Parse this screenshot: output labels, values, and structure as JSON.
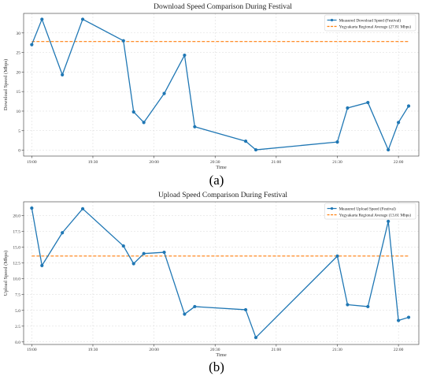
{
  "chart_data": [
    {
      "type": "line",
      "panel_label": "(a)",
      "title": "Download Speed Comparison During Festival",
      "xlabel": "Time",
      "ylabel": "Download Speed (Mbps)",
      "xlim": [
        "18:56",
        "22:10"
      ],
      "ylim": [
        -1.5,
        35.0
      ],
      "xticks": [
        "19:00",
        "19:30",
        "20:00",
        "20:30",
        "21:00",
        "21:30",
        "22:00"
      ],
      "yticks": [
        0,
        5,
        10,
        15,
        20,
        25,
        30
      ],
      "grid": true,
      "legend_position": "top-right",
      "colors": {
        "measured": "#1f77b4",
        "average": "#ff7f0e"
      },
      "series": [
        {
          "name": "Measured Download Speed (Festival)",
          "style": "line-markers",
          "x": [
            "19:00",
            "19:05",
            "19:15",
            "19:25",
            "19:45",
            "19:50",
            "19:55",
            "20:05",
            "20:15",
            "20:20",
            "20:45",
            "20:50",
            "21:30",
            "21:35",
            "21:45",
            "21:55",
            "22:00",
            "22:05"
          ],
          "y": [
            27.0,
            33.5,
            19.3,
            33.5,
            28.0,
            9.8,
            7.1,
            14.5,
            24.3,
            6.0,
            2.3,
            0.1,
            2.1,
            10.8,
            12.2,
            0.1,
            7.1,
            11.3
          ]
        },
        {
          "name": "Yogyakarta Regional Average (27.81 Mbps)",
          "style": "dashed",
          "x": [
            "19:00",
            "22:05"
          ],
          "y": [
            27.81,
            27.81
          ]
        }
      ]
    },
    {
      "type": "line",
      "panel_label": "(b)",
      "title": "Upload Speed Comparison During Festival",
      "xlabel": "Time",
      "ylabel": "Upload Speed (Mbps)",
      "xlim": [
        "18:56",
        "22:10"
      ],
      "ylim": [
        -0.4,
        22.2
      ],
      "xticks": [
        "19:00",
        "19:30",
        "20:00",
        "20:30",
        "21:00",
        "21:30",
        "22:00"
      ],
      "yticks": [
        0.0,
        2.5,
        5.0,
        7.5,
        10.0,
        12.5,
        15.0,
        17.5,
        20.0
      ],
      "grid": true,
      "legend_position": "top-right",
      "colors": {
        "measured": "#1f77b4",
        "average": "#ff7f0e"
      },
      "series": [
        {
          "name": "Measured Upload Speed (Festival)",
          "style": "line-markers",
          "x": [
            "19:00",
            "19:05",
            "19:15",
            "19:25",
            "19:45",
            "19:50",
            "19:55",
            "20:05",
            "20:15",
            "20:20",
            "20:45",
            "20:50",
            "21:30",
            "21:35",
            "21:45",
            "21:55",
            "22:00",
            "22:05"
          ],
          "y": [
            21.2,
            12.1,
            17.3,
            21.1,
            15.2,
            12.4,
            14.0,
            14.2,
            4.4,
            5.6,
            5.1,
            0.7,
            13.6,
            5.9,
            5.6,
            19.1,
            3.4,
            3.9
          ]
        },
        {
          "name": "Yogyakarta Regional Average (13.61 Mbps)",
          "style": "dashed",
          "x": [
            "19:00",
            "22:05"
          ],
          "y": [
            13.61,
            13.61
          ]
        }
      ]
    }
  ]
}
